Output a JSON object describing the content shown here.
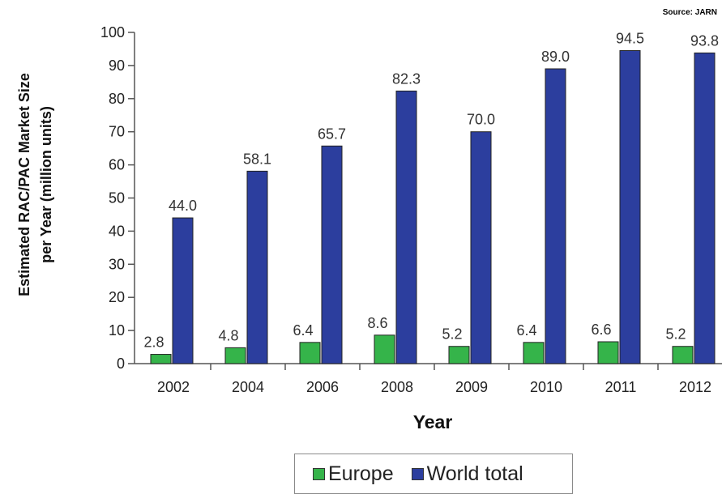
{
  "source": "Source: JARN",
  "colors": {
    "europe": "#35b44a",
    "world": "#2c3e9e",
    "axis": "#555555"
  },
  "chart_data": {
    "type": "bar",
    "xlabel": "Year",
    "ylabel_lines": [
      "Estimated RAC/PAC Market Size",
      "per Year (million units)"
    ],
    "categories": [
      "2002",
      "2004",
      "2006",
      "2008",
      "2009",
      "2010",
      "2011",
      "2012"
    ],
    "series": [
      {
        "name": "Europe",
        "color": "#35b44a",
        "values": [
          2.8,
          4.8,
          6.4,
          8.6,
          5.2,
          6.4,
          6.6,
          5.2
        ]
      },
      {
        "name": "World total",
        "color": "#2c3e9e",
        "values": [
          44.0,
          58.1,
          65.7,
          82.3,
          70.0,
          89.0,
          94.5,
          93.8
        ]
      }
    ],
    "ylim": [
      0,
      100
    ],
    "yticks": [
      0,
      10,
      20,
      30,
      40,
      50,
      60,
      70,
      80,
      90,
      100
    ],
    "grid": false,
    "legend_position": "bottom"
  }
}
